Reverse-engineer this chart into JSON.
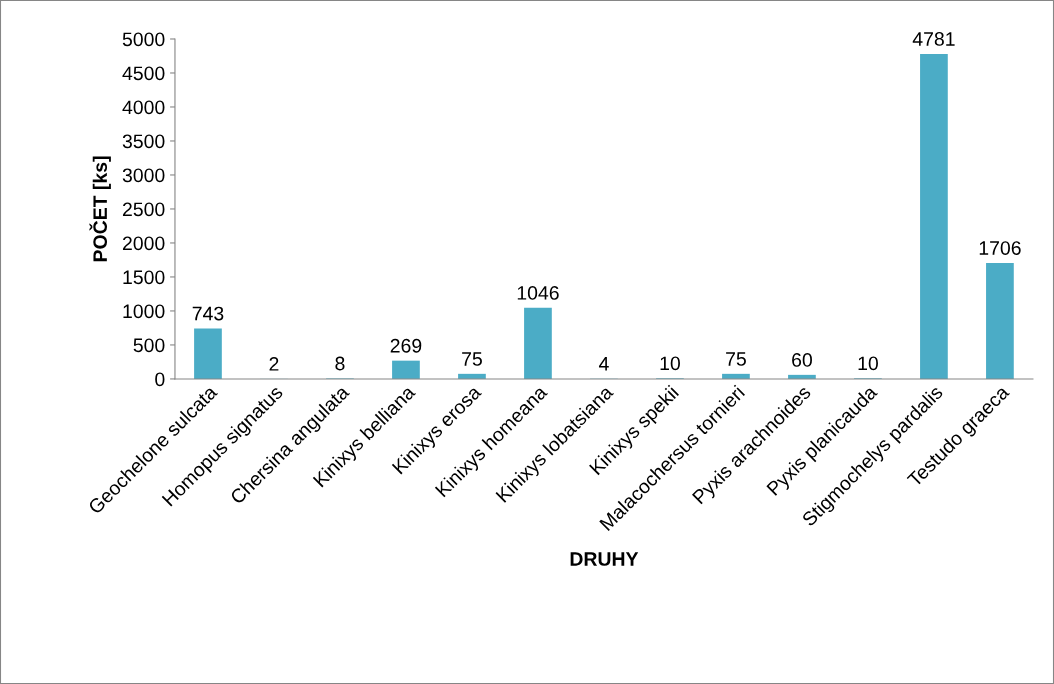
{
  "chart_data": {
    "type": "bar",
    "xlabel": "DRUHY",
    "ylabel": "POČET [ks]",
    "categories": [
      "Geochelone sulcata",
      "Homopus signatus",
      "Chersina angulata",
      "Kinixys belliana",
      "Kinixys erosa",
      "Kinixys homeana",
      "Kinixys lobatsiana",
      "Kinixys spekii",
      "Malacochersus tornieri",
      "Pyxis arachnoides",
      "Pyxis planicauda",
      "Stigmochelys pardalis",
      "Testudo graeca"
    ],
    "values": [
      743,
      2,
      8,
      269,
      75,
      1046,
      4,
      10,
      75,
      60,
      10,
      4781,
      1706
    ],
    "color": "#4bacc6",
    "ylim": [
      0,
      5000
    ],
    "yticks": [
      0,
      500,
      1000,
      1500,
      2000,
      2500,
      3000,
      3500,
      4000,
      4500,
      5000
    ],
    "data_labels": true,
    "grid": false,
    "legend": false
  }
}
